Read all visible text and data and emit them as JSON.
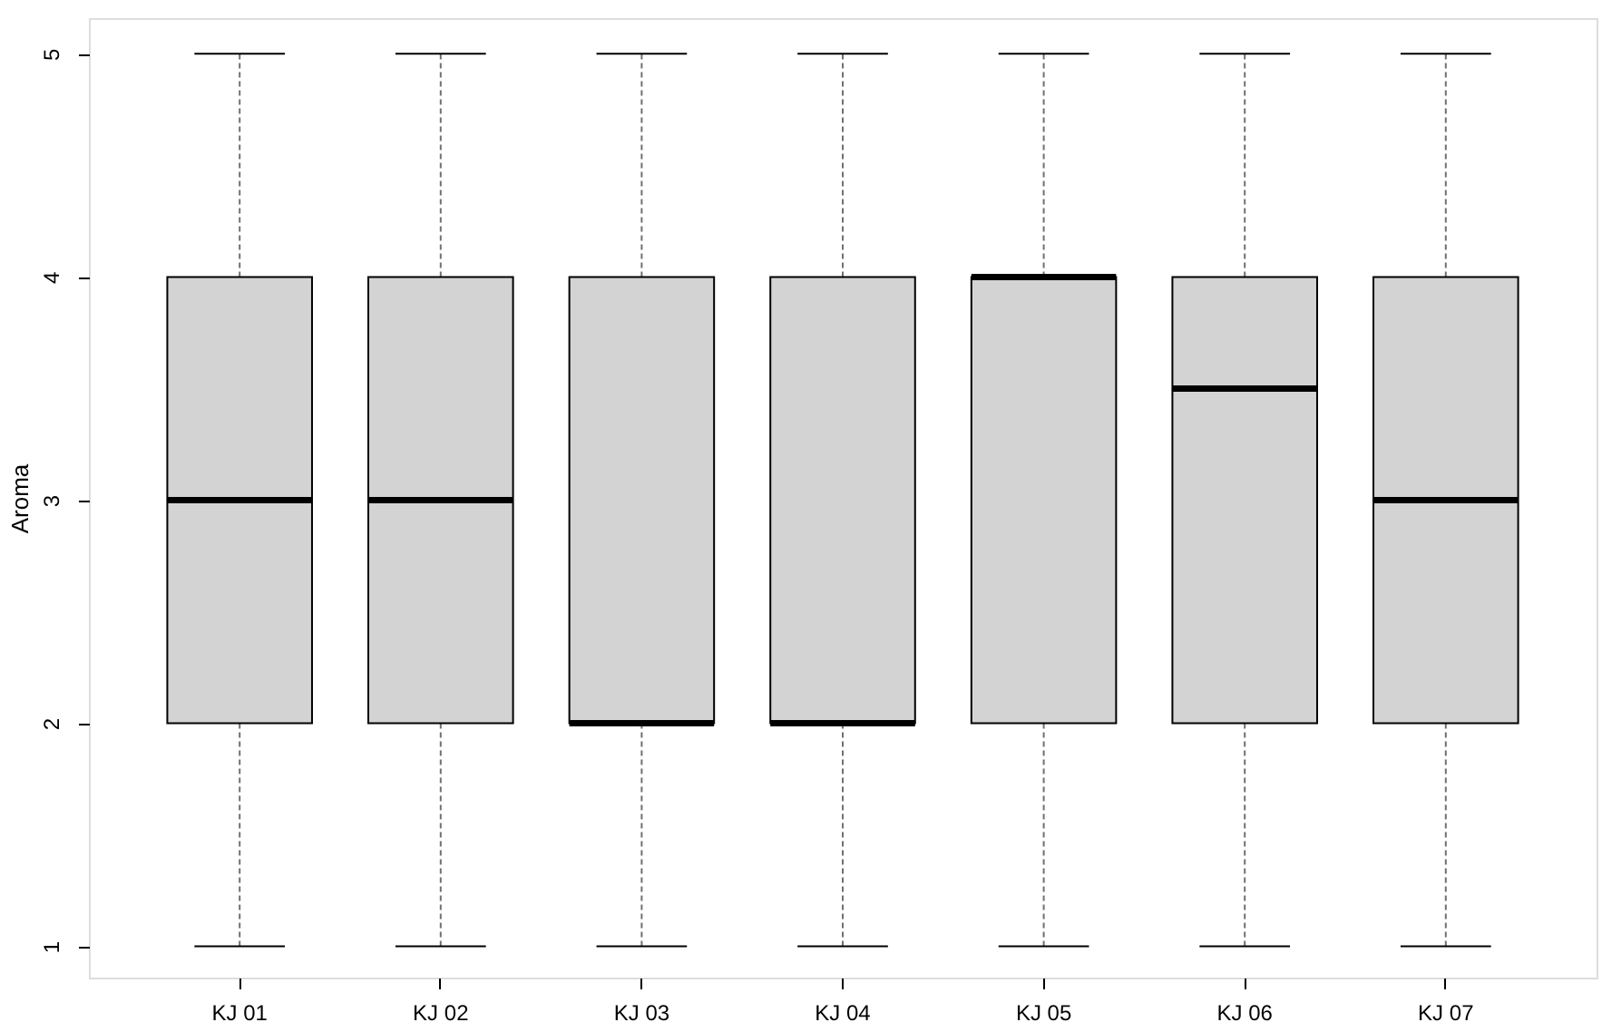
{
  "chart_data": {
    "type": "box",
    "ylabel": "Aroma",
    "categories": [
      "KJ 01",
      "KJ 02",
      "KJ 03",
      "KJ 04",
      "KJ 05",
      "KJ 06",
      "KJ 07"
    ],
    "series": [
      {
        "color": "#d3d3d3",
        "boxes": [
          {
            "low": 1,
            "q1": 2,
            "median": 3,
            "q3": 4,
            "high": 5
          },
          {
            "low": 1,
            "q1": 2,
            "median": 3,
            "q3": 4,
            "high": 5
          },
          {
            "low": 1,
            "q1": 2,
            "median": 2,
            "q3": 4,
            "high": 5
          },
          {
            "low": 1,
            "q1": 2,
            "median": 2,
            "q3": 4,
            "high": 5
          },
          {
            "low": 1,
            "q1": 2,
            "median": 4,
            "q3": 4,
            "high": 5
          },
          {
            "low": 1,
            "q1": 2,
            "median": 3.5,
            "q3": 4,
            "high": 5
          },
          {
            "low": 1,
            "q1": 2,
            "median": 3,
            "q3": 4,
            "high": 5
          }
        ]
      }
    ],
    "ylim": [
      0.86,
      5.16
    ],
    "yticks": [
      1,
      2,
      3,
      4,
      5
    ]
  }
}
